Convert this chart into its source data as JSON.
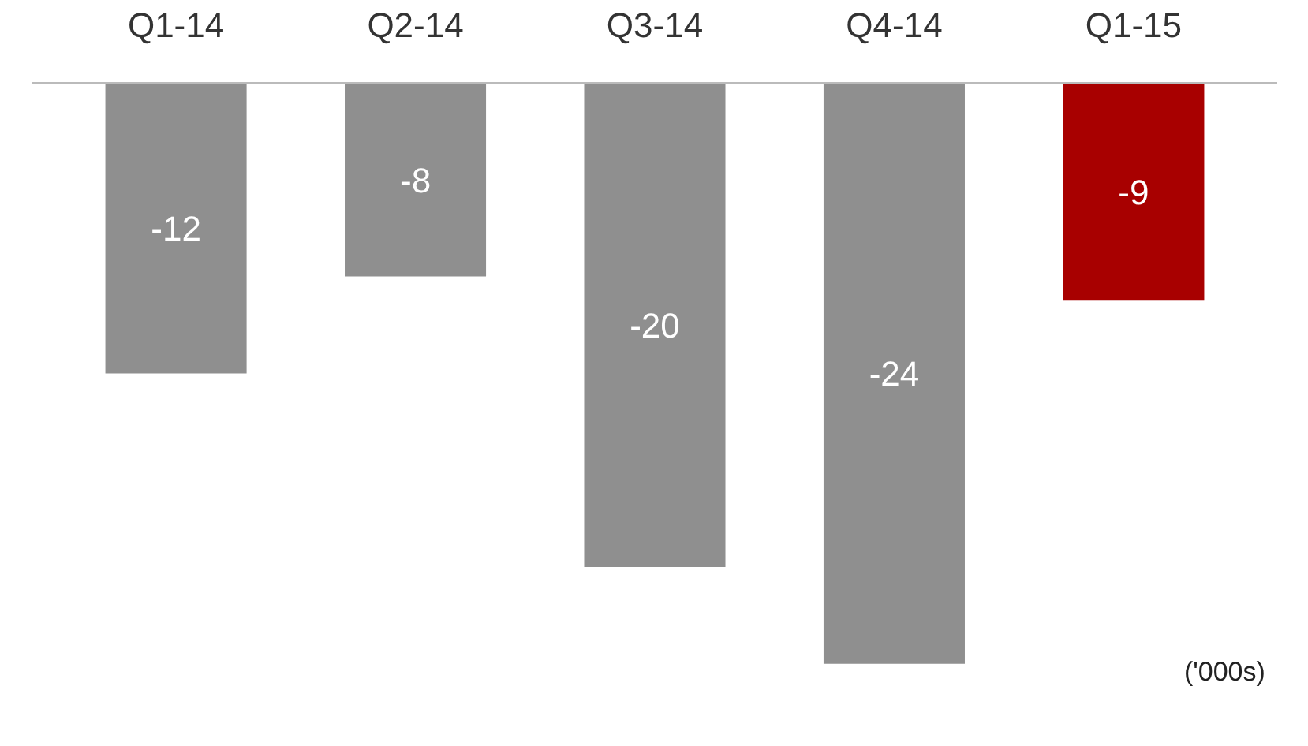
{
  "chart_data": {
    "type": "bar",
    "categories": [
      "Q1-14",
      "Q2-14",
      "Q3-14",
      "Q4-14",
      "Q1-15"
    ],
    "values": [
      -12,
      -8,
      -20,
      -24,
      -9
    ],
    "colors": [
      "#8f8f8f",
      "#8f8f8f",
      "#8f8f8f",
      "#8f8f8f",
      "#a80000"
    ],
    "data_labels": true,
    "annotations": [
      "('000s)"
    ]
  }
}
